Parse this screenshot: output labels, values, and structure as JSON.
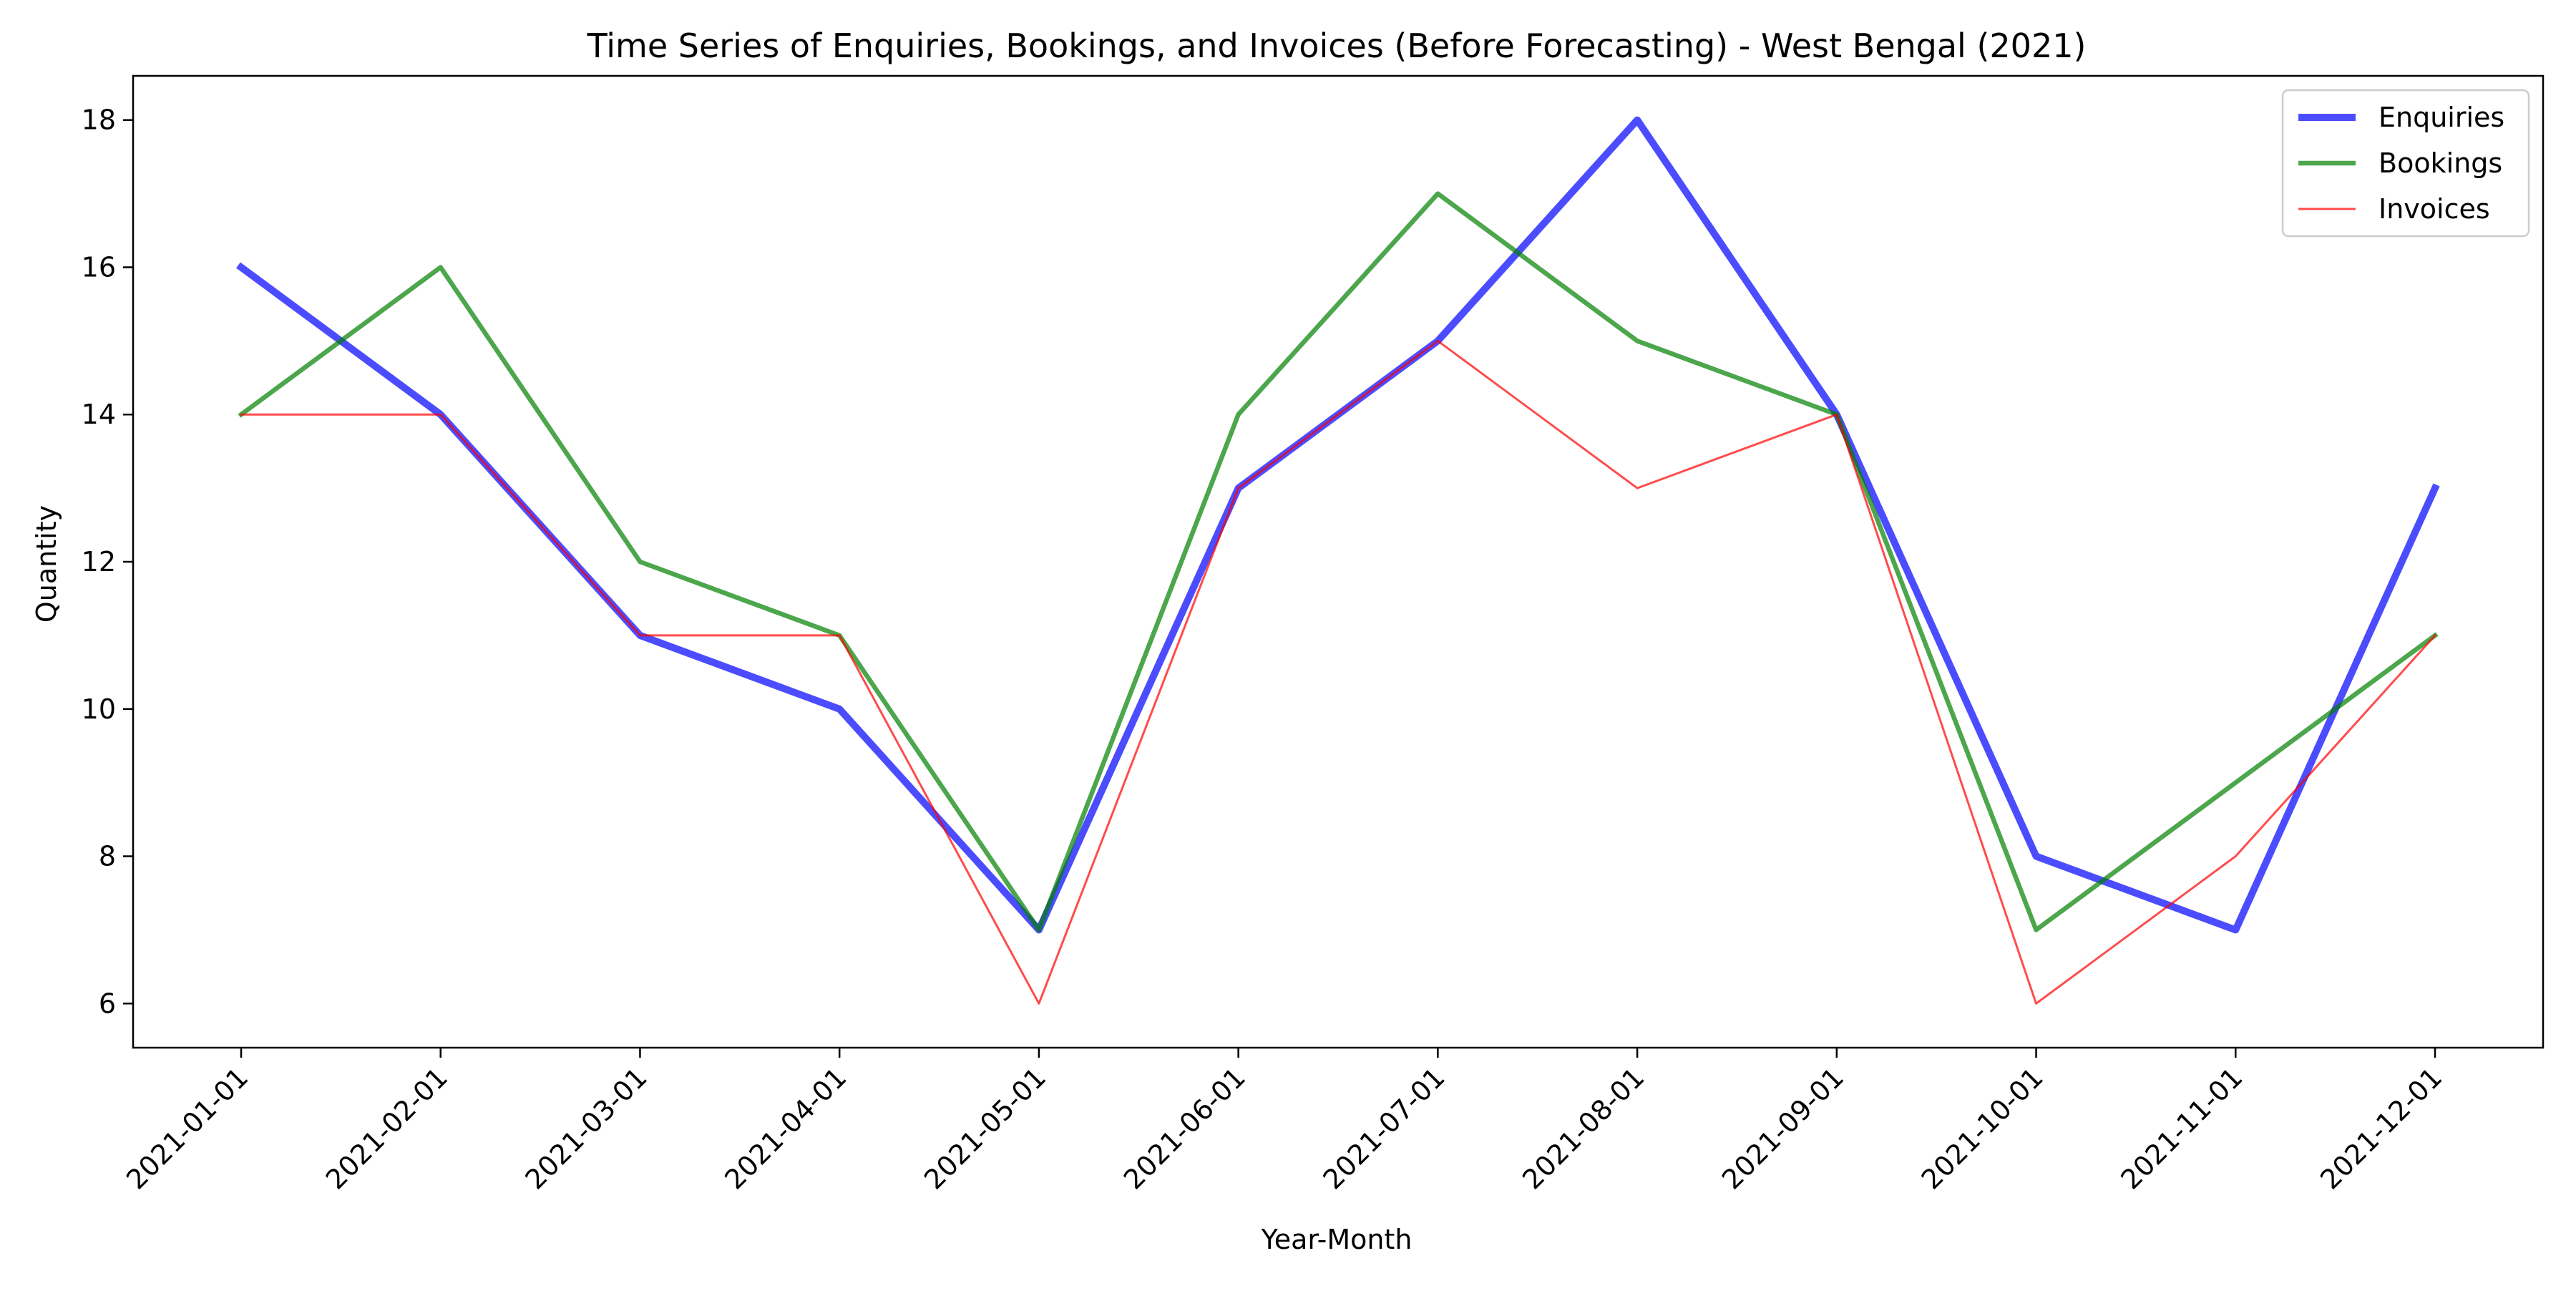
{
  "chart_data": {
    "type": "line",
    "title": "Time Series of Enquiries, Bookings, and Invoices (Before Forecasting) - West Bengal (2021)",
    "xlabel": "Year-Month",
    "ylabel": "Quantity",
    "categories": [
      "2021-01-01",
      "2021-02-01",
      "2021-03-01",
      "2021-04-01",
      "2021-05-01",
      "2021-06-01",
      "2021-07-01",
      "2021-08-01",
      "2021-09-01",
      "2021-10-01",
      "2021-11-01",
      "2021-12-01"
    ],
    "ylim": [
      5.4,
      18.6
    ],
    "yticks": [
      6,
      8,
      10,
      12,
      14,
      16,
      18
    ],
    "grid": false,
    "legend_position": "top-right",
    "series": [
      {
        "name": "Enquiries",
        "color": "#0000ff",
        "values": [
          16,
          14,
          11,
          10,
          7,
          13,
          15,
          18,
          14,
          8,
          7,
          13
        ]
      },
      {
        "name": "Bookings",
        "color": "#008000",
        "values": [
          14,
          16,
          12,
          11,
          7,
          14,
          17,
          15,
          14,
          7,
          9,
          11
        ]
      },
      {
        "name": "Invoices",
        "color": "#ff0000",
        "values": [
          14,
          14,
          11,
          11,
          6,
          13,
          15,
          13,
          14,
          6,
          8,
          11
        ]
      }
    ]
  }
}
